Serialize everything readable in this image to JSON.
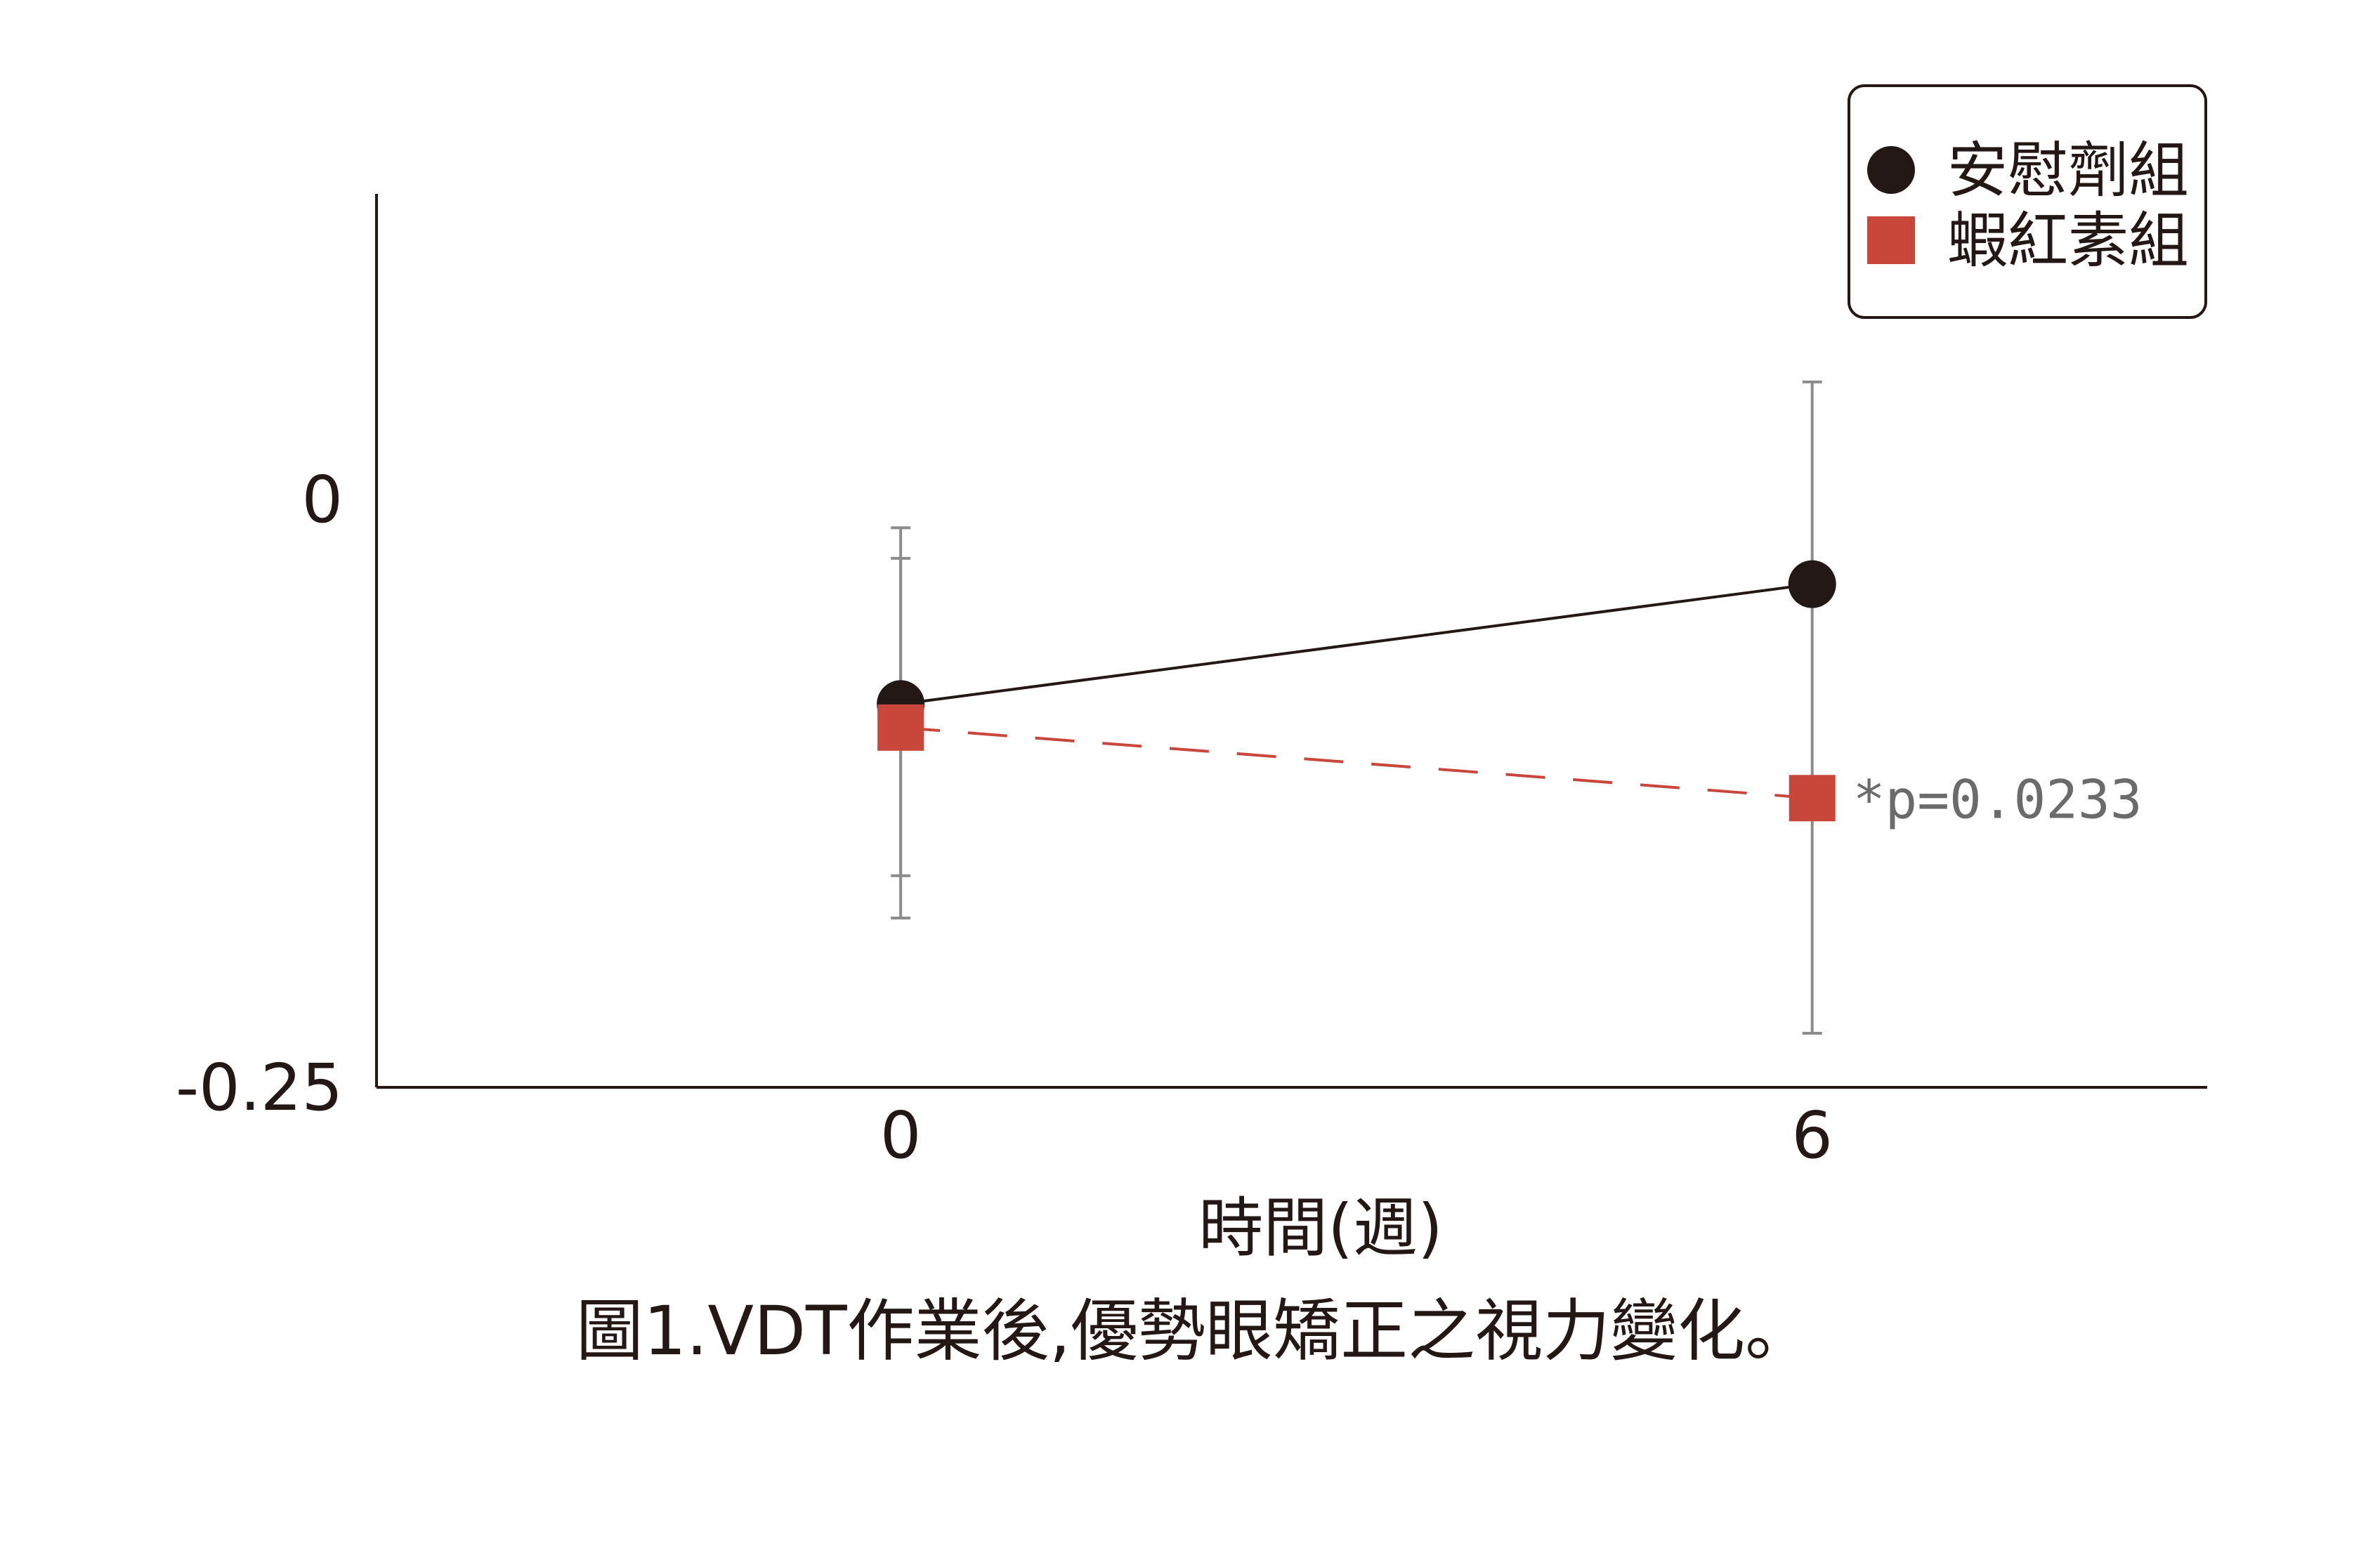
{
  "chart_data": {
    "type": "line",
    "x": [
      0,
      6
    ],
    "xticks": [
      "0",
      "6"
    ],
    "xlabel": "時間(週)",
    "ylabel": "",
    "yticks": [
      "0",
      "-0.25"
    ],
    "ylim": [
      -0.25,
      0.13
    ],
    "xlim": [
      -3.45,
      8.6
    ],
    "grid": false,
    "legend_position": "top-right",
    "series": [
      {
        "name": "安慰劑組",
        "marker": "circle",
        "line_style": "solid",
        "color": "#231815",
        "values": [
          -0.087,
          -0.036
        ],
        "error_bars": [
          [
            -0.178,
            -0.012
          ],
          [
            -0.227,
            0.05
          ]
        ]
      },
      {
        "name": "蝦紅素組",
        "marker": "square",
        "line_style": "dashed",
        "color": "#c8473a",
        "values": [
          -0.097,
          -0.127
        ],
        "error_bars": [
          [
            -0.16,
            -0.025
          ],
          null
        ]
      }
    ],
    "annotations": [
      {
        "text": "*p=0.0233",
        "series": 1,
        "x": 6
      }
    ]
  },
  "caption": "圖1.VDT作業後,優勢眼矯正之視力變化。",
  "colors": {
    "axis": "#231815",
    "error_bar": "#8c8c8c",
    "text": "#231815",
    "annotation": "#6b6b6b"
  }
}
